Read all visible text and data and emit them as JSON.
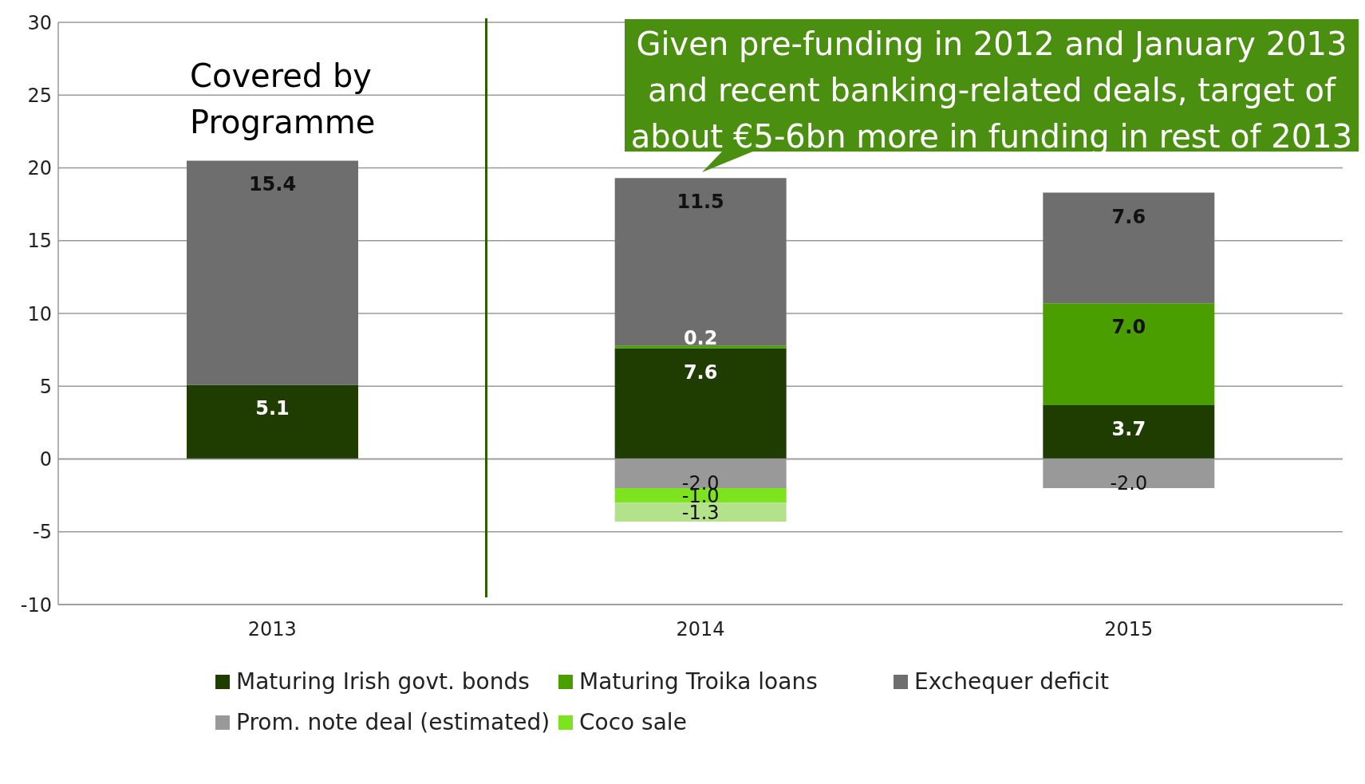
{
  "chart_data": {
    "type": "bar",
    "stacked": true,
    "categories": [
      "2013",
      "2014",
      "2015"
    ],
    "series": [
      {
        "name": "Maturing Irish govt. bonds",
        "color": "#1f3d00",
        "values": [
          5.1,
          7.6,
          3.7
        ],
        "value_labels": [
          "5.1",
          "7.6",
          "3.7"
        ]
      },
      {
        "name": "Maturing Troika loans",
        "color": "#4a9e00",
        "values": [
          null,
          0.2,
          7.0
        ],
        "value_labels": [
          null,
          "0.2",
          "7.0"
        ]
      },
      {
        "name": "Exchequer deficit",
        "color": "#6e6e6e",
        "values": [
          15.4,
          11.5,
          7.6
        ],
        "value_labels": [
          "15.4",
          "11.5",
          "7.6"
        ]
      },
      {
        "name": "Prom. note deal (estimated)",
        "color": "#999999",
        "values": [
          null,
          -2.0,
          -2.0
        ],
        "value_labels": [
          null,
          "-2.0",
          "-2.0"
        ]
      },
      {
        "name": "Coco sale",
        "color": "#7de31f",
        "values": [
          null,
          -1.0,
          null
        ],
        "value_labels": [
          null,
          "-1.0",
          null
        ]
      },
      {
        "color": "#b3e28a",
        "values": [
          null,
          -1.3,
          null
        ],
        "value_labels": [
          null,
          "-1.3",
          null
        ]
      }
    ],
    "ylim": [
      -10,
      30
    ],
    "yticks": [
      -10,
      -5,
      0,
      5,
      10,
      15,
      20,
      25,
      30
    ],
    "grid": "y",
    "legend": "bottom",
    "annotations": [
      "Covered by Programme",
      "Given pre-funding in 2012 and January 2013 and recent banking-related deals, target of about €5-6bn more in funding in rest of 2013"
    ]
  }
}
